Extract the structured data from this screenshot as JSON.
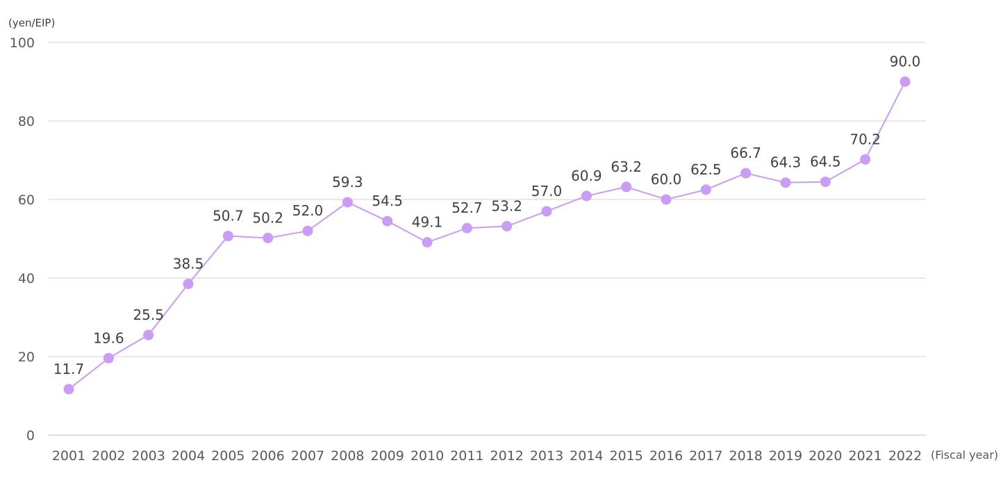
{
  "chart_data": {
    "type": "line",
    "title": "",
    "xlabel": "(Fiscal year)",
    "ylabel": "(yen/EIP)",
    "ylim": [
      0,
      100
    ],
    "yticks": [
      0,
      20,
      40,
      60,
      80,
      100
    ],
    "grid": true,
    "legend": "none",
    "colors": {
      "series": "#c99cf5",
      "marker": "#c99cf5",
      "grid": "#d0d0d0"
    },
    "x": [
      "2001",
      "2002",
      "2003",
      "2004",
      "2005",
      "2006",
      "2007",
      "2008",
      "2009",
      "2010",
      "2011",
      "2012",
      "2013",
      "2014",
      "2015",
      "2016",
      "2017",
      "2018",
      "2019",
      "2020",
      "2021",
      "2022"
    ],
    "series": [
      {
        "values": [
          11.7,
          19.6,
          25.5,
          38.5,
          50.7,
          50.2,
          52.0,
          59.3,
          54.5,
          49.1,
          52.7,
          53.2,
          57.0,
          60.9,
          63.2,
          60.0,
          62.5,
          66.7,
          64.3,
          64.5,
          70.2,
          90.0
        ],
        "labels": [
          "11.7",
          "19.6",
          "25.5",
          "38.5",
          "50.7",
          "50.2",
          "52.0",
          "59.3",
          "54.5",
          "49.1",
          "52.7",
          "53.2",
          "57.0",
          "60.9",
          "63.2",
          "60.0",
          "62.5",
          "66.7",
          "64.3",
          "64.5",
          "70.2",
          "90.0"
        ]
      }
    ]
  }
}
